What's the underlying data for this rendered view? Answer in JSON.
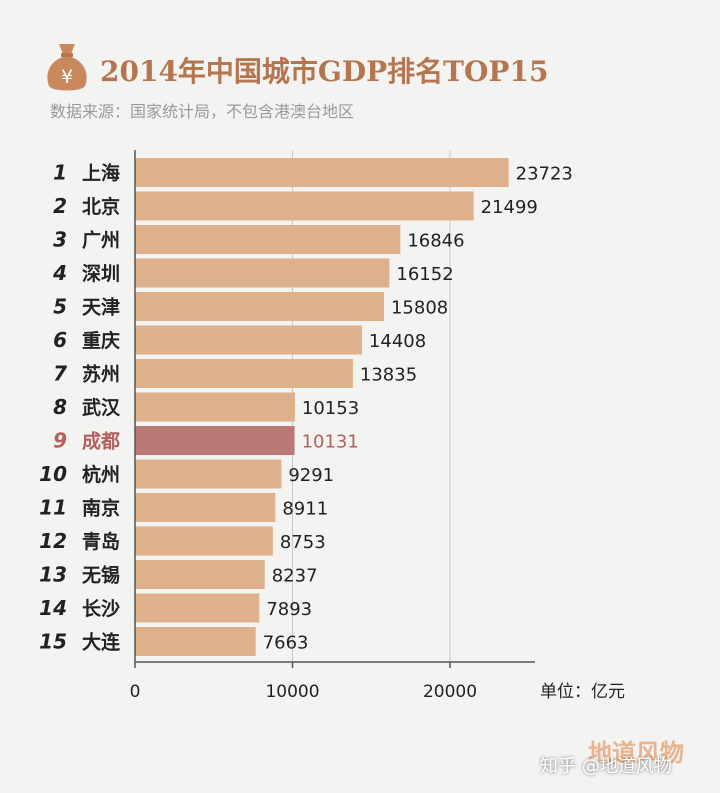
{
  "header": {
    "title": "2014年中国城市GDP排名TOP15",
    "subtitle": "数据来源：国家统计局，不包含港澳台地区",
    "icon": "money-bag-icon",
    "icon_symbol": "¥"
  },
  "colors": {
    "bar": "#deb08c",
    "highlight_bar": "#b97a76",
    "highlight_text": "#b2605c",
    "title": "#b5754e",
    "axis": "#555555",
    "text": "#222222"
  },
  "chart_data": {
    "type": "bar",
    "orientation": "horizontal",
    "ranks": [
      "1",
      "2",
      "3",
      "4",
      "5",
      "6",
      "7",
      "8",
      "9",
      "10",
      "11",
      "12",
      "13",
      "14",
      "15"
    ],
    "categories": [
      "上海",
      "北京",
      "广州",
      "深圳",
      "天津",
      "重庆",
      "苏州",
      "武汉",
      "成都",
      "杭州",
      "南京",
      "青岛",
      "无锡",
      "长沙",
      "大连"
    ],
    "values": [
      23723,
      21499,
      16846,
      16152,
      15808,
      14408,
      13835,
      10153,
      10131,
      9291,
      8911,
      8753,
      8237,
      7893,
      7663
    ],
    "value_labels": [
      "23723",
      "21499",
      "16846",
      "16152",
      "15808",
      "14408",
      "13835",
      "10153",
      "10131",
      "9291",
      "8911",
      "8753",
      "8237",
      "7893",
      "7663"
    ],
    "highlight_index": 8,
    "xlim": [
      0,
      27000
    ],
    "x_ticks": [
      0,
      10000,
      20000
    ],
    "x_tick_labels": [
      "0",
      "10000",
      "20000"
    ],
    "gridlines": [
      10000,
      20000
    ],
    "xlabel": "单位：亿元"
  },
  "footer": {
    "logo": "地道风物",
    "watermark": "知乎 @地道风物"
  }
}
